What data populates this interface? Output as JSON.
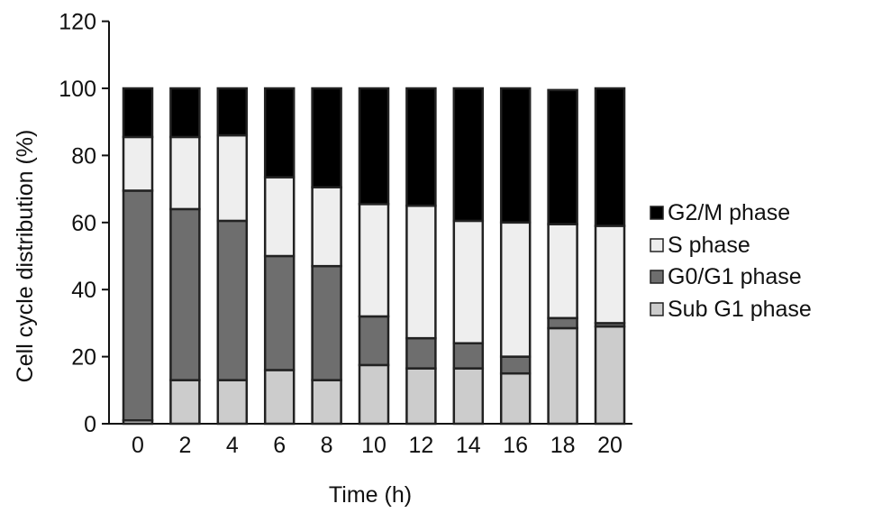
{
  "chart_data": {
    "type": "bar",
    "stacked": true,
    "title": "",
    "xlabel": "Time (h)",
    "ylabel": "Cell cycle distribution (%)",
    "ylim": [
      0,
      120
    ],
    "yticks": [
      "0",
      "20",
      "40",
      "60",
      "80",
      "100",
      "120"
    ],
    "categories": [
      "0",
      "2",
      "4",
      "6",
      "8",
      "10",
      "12",
      "14",
      "16",
      "18",
      "20"
    ],
    "series": [
      {
        "name": "Sub G1 phase",
        "color": "#cccccc",
        "values": [
          1,
          13,
          13,
          16,
          13,
          17.5,
          16.5,
          16.5,
          15,
          28.5,
          29
        ]
      },
      {
        "name": "G0/G1 phase",
        "color": "#6e6e6e",
        "values": [
          68.5,
          51,
          47.5,
          34,
          34,
          14.5,
          9,
          7.5,
          5,
          3,
          1
        ]
      },
      {
        "name": "S phase",
        "color": "#eeeeee",
        "values": [
          16,
          21.5,
          25.5,
          23.5,
          23.5,
          33.5,
          39.5,
          36.5,
          40,
          28,
          29
        ]
      },
      {
        "name": "G2/M phase",
        "color": "#000000",
        "values": [
          14.5,
          14.5,
          14,
          26.5,
          29.5,
          34.5,
          35,
          39.5,
          40,
          40,
          41
        ]
      }
    ],
    "legend": {
      "position": "right",
      "order": [
        "G2/M phase",
        "S phase",
        "G0/G1 phase",
        "Sub G1 phase"
      ]
    },
    "grid": false
  }
}
